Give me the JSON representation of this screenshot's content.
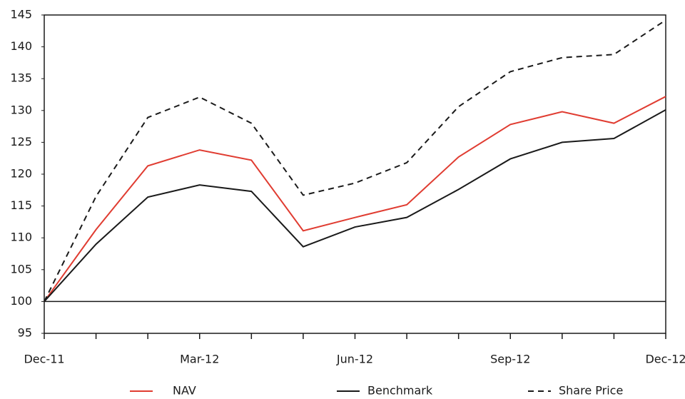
{
  "chart_data": {
    "type": "line",
    "categories": [
      "Dec-11",
      null,
      null,
      "Mar-12",
      null,
      null,
      "Jun-12",
      null,
      null,
      "Sep-12",
      null,
      null,
      "Dec-12"
    ],
    "series": [
      {
        "name": "NAV",
        "color": "#e03c31",
        "dash": false,
        "values": [
          100,
          111.3,
          121.3,
          123.8,
          122.2,
          111.1,
          113.2,
          115.2,
          122.7,
          127.8,
          129.8,
          128,
          132.2
        ]
      },
      {
        "name": "Benchmark",
        "color": "#1a1a1a",
        "dash": false,
        "values": [
          100,
          109,
          116.4,
          118.3,
          117.3,
          108.6,
          111.7,
          113.2,
          117.6,
          122.4,
          125,
          125.6,
          130.1
        ]
      },
      {
        "name": "Share Price",
        "color": "#1a1a1a",
        "dash": true,
        "values": [
          100,
          116.5,
          128.9,
          132.1,
          128,
          116.7,
          118.6,
          121.8,
          130.6,
          136.1,
          138.3,
          138.8,
          144.2
        ]
      }
    ],
    "reference_line": 100,
    "ylim": [
      95,
      145
    ],
    "yticks": [
      95,
      100,
      105,
      110,
      115,
      120,
      125,
      130,
      135,
      140,
      145
    ],
    "grid": false,
    "legend": "bottom"
  }
}
